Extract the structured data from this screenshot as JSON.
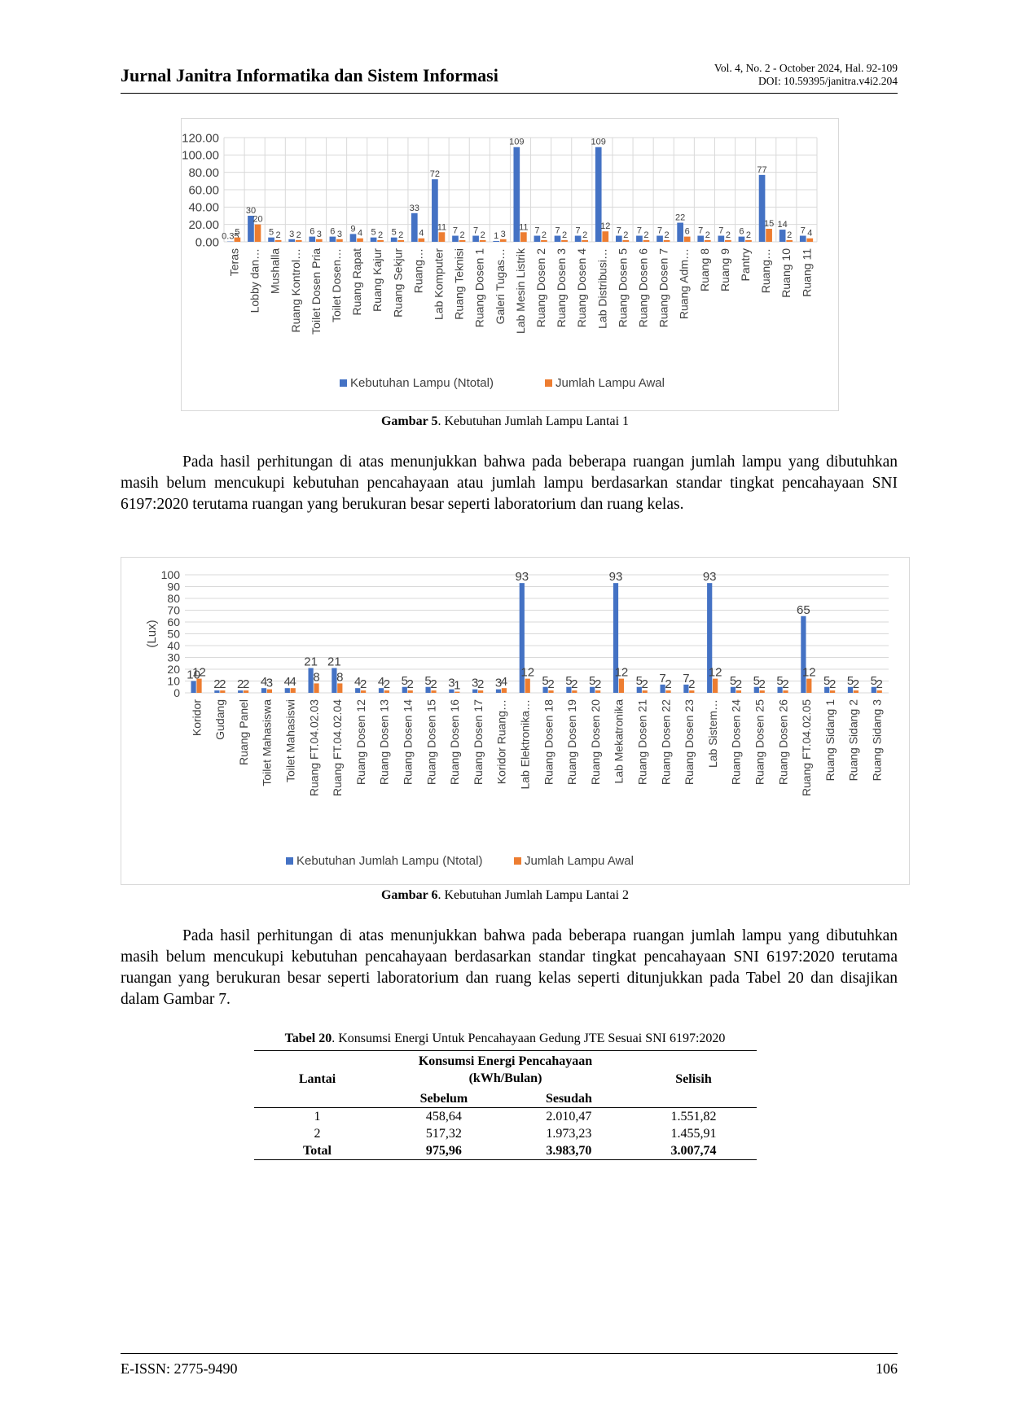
{
  "header": {
    "journal": "Jurnal Janitra Informatika dan Sistem Informasi",
    "volume": "Vol. 4, No. 2 - October 2024, Hal. 92-109",
    "doi": "DOI: 10.59395/janitra.v4i2.204"
  },
  "figure5": {
    "caption_label": "Gambar 5",
    "caption_text": ". Kebutuhan Jumlah Lampu Lantai 1",
    "chart_data": {
      "type": "bar",
      "categories": [
        "Teras",
        "Lobby dan…",
        "Mushalla",
        "Ruang Kontrol…",
        "Toilet Dosen Pria",
        "Toilet Dosen…",
        "Ruang Rapat",
        "Ruang Kajur",
        "Ruang Sekjur",
        "Ruang…",
        "Lab Komputer",
        "Ruang Teknisi",
        "Ruang Dosen 1",
        "Galeri Tugas…",
        "Lab Mesin Listrik",
        "Ruang Dosen 2",
        "Ruang Dosen 3",
        "Ruang Dosen 4",
        "Lab Distribusi…",
        "Ruang Dosen 5",
        "Ruang Dosen 6",
        "Ruang Dosen 7",
        "Ruang Adm…",
        "Ruang 8",
        "Ruang 9",
        "Pantry",
        "Ruang…",
        "Ruang 10",
        "Ruang 11"
      ],
      "series": [
        {
          "name": "Kebutuhan Lampu (Ntotal)",
          "color": "#4472c4",
          "values": [
            0.35,
            30,
            5,
            3,
            6,
            6,
            9,
            5,
            5,
            33,
            72,
            7,
            7,
            1,
            109,
            7,
            7,
            7,
            109,
            7,
            7,
            7,
            22,
            7,
            7,
            6,
            77,
            14,
            7
          ],
          "labels": [
            "0.35",
            "30",
            "5",
            "3",
            "6",
            "6",
            "9",
            "5",
            "5",
            "33",
            "72",
            "7",
            "7",
            "1",
            "109",
            "7",
            "7",
            "7",
            "109",
            "7",
            "7",
            "7",
            "22",
            "7",
            "7",
            "6",
            "77",
            "14",
            "7"
          ]
        },
        {
          "name": "Jumlah Lampu Awal",
          "color": "#ed7d31",
          "values": [
            5,
            20,
            2,
            2,
            3,
            3,
            4,
            2,
            2,
            4,
            11,
            2,
            2,
            3,
            11,
            2,
            2,
            2,
            12,
            2,
            2,
            2,
            6,
            2,
            2,
            2,
            15,
            2,
            4
          ],
          "labels": [
            "5",
            "20",
            "2",
            "2",
            "3",
            "3",
            "4",
            "2",
            "2",
            "4",
            "11",
            "2",
            "2",
            "3",
            "11",
            "2",
            "2",
            "2",
            "12",
            "2",
            "2",
            "2",
            "6",
            "2",
            "2",
            "2",
            "15",
            "2",
            "4"
          ]
        }
      ],
      "yticks": [
        "0.00",
        "20.00",
        "40.00",
        "60.00",
        "80.00",
        "100.00",
        "120.00"
      ],
      "ylim": [
        0,
        120
      ],
      "grid": true,
      "legend_position": "bottom"
    }
  },
  "para1": "Pada hasil perhitungan di atas menunjukkan bahwa pada beberapa ruangan jumlah lampu yang dibutuhkan masih belum mencukupi kebutuhan pencahayaan atau jumlah lampu berdasarkan standar tingkat pencahayaan SNI 6197:2020 terutama ruangan yang berukuran besar seperti laboratorium dan ruang kelas.",
  "figure6": {
    "caption_label": "Gambar 6",
    "caption_text": ". Kebutuhan Jumlah Lampu Lantai 2",
    "chart_data": {
      "type": "bar",
      "ylabel": "(Lux)",
      "categories": [
        "Koridor",
        "Gudang",
        "Ruang Panel",
        "Toilet Mahasiswa",
        "Toilet Mahasiswi",
        "Ruang FT.04.02.03",
        "Ruang FT.04.02.04",
        "Ruang Dosen 12",
        "Ruang Dosen 13",
        "Ruang Dosen 14",
        "Ruang Dosen 15",
        "Ruang Dosen 16",
        "Ruang Dosen 17",
        "Koridor Ruang…",
        "Lab Elektronika…",
        "Ruang Dosen 18",
        "Ruang Dosen 19",
        "Ruang Dosen 20",
        "Lab Mekatronika",
        "Ruang Dosen 21",
        "Ruang Dosen 22",
        "Ruang Dosen 23",
        "Lab Sistem…",
        "Ruang Dosen 24",
        "Ruang Dosen 25",
        "Ruang Dosen 26",
        "Ruang FT.04.02.05",
        "Ruang Sidang 1",
        "Ruang Sidang 2",
        "Ruang Sidang 3"
      ],
      "series": [
        {
          "name": "Kebutuhan Jumlah Lampu (Ntotal)",
          "color": "#4472c4",
          "values": [
            10,
            2,
            2,
            4,
            4,
            21,
            21,
            4,
            4,
            5,
            5,
            3,
            3,
            3,
            93,
            5,
            5,
            5,
            93,
            5,
            7,
            7,
            93,
            5,
            5,
            5,
            65,
            5,
            5,
            5
          ],
          "labels": [
            "10",
            "2",
            "2",
            "4",
            "4",
            "21",
            "21",
            "4",
            "4",
            "5",
            "5",
            "3",
            "3",
            "3",
            "93",
            "5",
            "5",
            "5",
            "93",
            "5",
            "7",
            "7",
            "93",
            "5",
            "5",
            "5",
            "65",
            "5",
            "5",
            "5"
          ]
        },
        {
          "name": "Jumlah Lampu Awal",
          "color": "#ed7d31",
          "values": [
            12,
            2,
            2,
            3,
            4,
            8,
            8,
            2,
            2,
            2,
            2,
            1,
            2,
            4,
            12,
            2,
            2,
            2,
            12,
            2,
            2,
            2,
            12,
            2,
            2,
            2,
            12,
            2,
            2,
            2
          ],
          "labels": [
            "12",
            "2",
            "2",
            "3",
            "4",
            "8",
            "8",
            "2",
            "2",
            "2",
            "2",
            "1",
            "2",
            "4",
            "12",
            "2",
            "2",
            "2",
            "12",
            "2",
            "2",
            "2",
            "12",
            "2",
            "2",
            "2",
            "12",
            "2",
            "2",
            "2"
          ]
        }
      ],
      "yticks": [
        "0",
        "10",
        "20",
        "30",
        "40",
        "50",
        "60",
        "70",
        "80",
        "90",
        "100"
      ],
      "ylim": [
        0,
        100
      ],
      "grid": true,
      "legend_position": "bottom"
    }
  },
  "para2": "Pada hasil perhitungan di atas menunjukkan bahwa pada beberapa ruangan jumlah lampu yang dibutuhkan masih belum mencukupi kebutuhan pencahayaan berdasarkan standar tingkat pencahayaan SNI 6197:2020 terutama ruangan yang berukuran besar seperti laboratorium dan ruang kelas seperti ditunjukkan pada Tabel 20 dan disajikan dalam Gambar 7.",
  "table20": {
    "caption_label": "Tabel 20",
    "caption_text": ". Konsumsi Energi Untuk Pencahayaan Gedung JTE Sesuai SNI 6197:2020",
    "col_lantai": "Lantai",
    "col_group_line1": "Konsumsi Energi Pencahayaan",
    "col_group_line2": "(kWh/Bulan)",
    "col_selisih": "Selisih",
    "col_sebelum": "Sebelum",
    "col_sesudah": "Sesudah",
    "rows": [
      {
        "lantai": "1",
        "sebelum": "458,64",
        "sesudah": "2.010,47",
        "selisih": "1.551,82"
      },
      {
        "lantai": "2",
        "sebelum": "517,32",
        "sesudah": "1.973,23",
        "selisih": "1.455,91"
      }
    ],
    "total": {
      "lantai": "Total",
      "sebelum": "975,96",
      "sesudah": "3.983,70",
      "selisih": "3.007,74"
    }
  },
  "footer": {
    "issn": "E-ISSN: 2775-9490",
    "page": "106"
  }
}
